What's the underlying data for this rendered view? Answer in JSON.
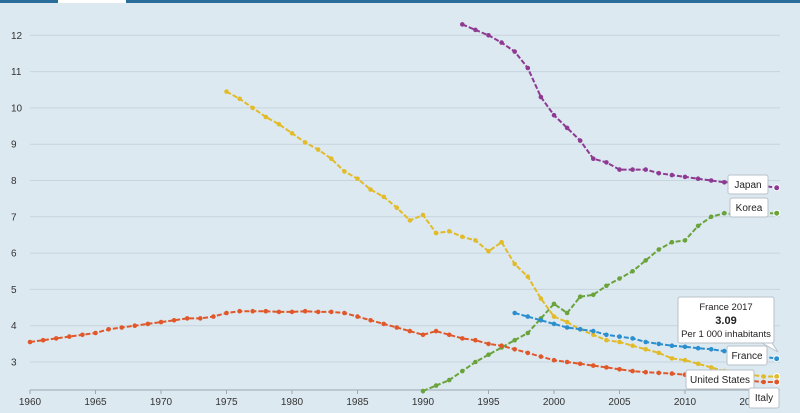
{
  "chart_data": {
    "type": "line",
    "x_ticks": [
      1960,
      1965,
      1970,
      1975,
      1980,
      1985,
      1990,
      1995,
      2000,
      2005,
      2010,
      2015
    ],
    "y_ticks": [
      3,
      4,
      5,
      6,
      7,
      8,
      9,
      10,
      11,
      12
    ],
    "xlim": [
      1960,
      2018
    ],
    "ylim": [
      2.2,
      12.7
    ],
    "grid": "horizontal",
    "series": [
      {
        "name": "Japan",
        "color": "#8e3a93",
        "x": [
          1993,
          1994,
          1995,
          1996,
          1997,
          1998,
          1999,
          2000,
          2001,
          2002,
          2003,
          2004,
          2005,
          2006,
          2007,
          2008,
          2009,
          2010,
          2011,
          2012,
          2013,
          2014,
          2015,
          2016,
          2017
        ],
        "values": [
          12.3,
          12.15,
          12.0,
          11.8,
          11.55,
          11.1,
          10.3,
          9.8,
          9.45,
          9.1,
          8.6,
          8.5,
          8.3,
          8.3,
          8.3,
          8.2,
          8.15,
          8.1,
          8.05,
          8.0,
          7.95,
          7.95,
          7.9,
          7.85,
          7.8
        ]
      },
      {
        "name": "Korea",
        "color": "#6aa33b",
        "x": [
          1990,
          1991,
          1992,
          1993,
          1994,
          1995,
          1996,
          1997,
          1998,
          1999,
          2000,
          2001,
          2002,
          2003,
          2004,
          2005,
          2006,
          2007,
          2008,
          2009,
          2010,
          2011,
          2012,
          2013,
          2014,
          2015,
          2016,
          2017
        ],
        "values": [
          2.2,
          2.35,
          2.5,
          2.75,
          3.0,
          3.2,
          3.4,
          3.6,
          3.8,
          4.2,
          4.6,
          4.35,
          4.8,
          4.85,
          5.1,
          5.3,
          5.5,
          5.8,
          6.1,
          6.3,
          6.35,
          6.75,
          7.0,
          7.1,
          7.05,
          7.15,
          7.1,
          7.1
        ]
      },
      {
        "name": "Italy",
        "color": "#e2bb2a",
        "x": [
          1975,
          1976,
          1977,
          1978,
          1979,
          1980,
          1981,
          1982,
          1983,
          1984,
          1985,
          1986,
          1987,
          1988,
          1989,
          1990,
          1991,
          1992,
          1993,
          1994,
          1995,
          1996,
          1997,
          1998,
          1999,
          2000,
          2001,
          2002,
          2003,
          2004,
          2005,
          2006,
          2007,
          2008,
          2009,
          2010,
          2011,
          2012,
          2013,
          2014,
          2015,
          2016,
          2017
        ],
        "values": [
          10.45,
          10.25,
          10.0,
          9.75,
          9.55,
          9.3,
          9.05,
          8.85,
          8.6,
          8.25,
          8.05,
          7.75,
          7.55,
          7.25,
          6.9,
          7.05,
          6.55,
          6.6,
          6.45,
          6.35,
          6.05,
          6.3,
          5.7,
          5.35,
          4.75,
          4.25,
          4.1,
          3.9,
          3.75,
          3.6,
          3.55,
          3.45,
          3.35,
          3.25,
          3.1,
          3.05,
          2.95,
          2.85,
          2.75,
          2.7,
          2.65,
          2.6,
          2.6
        ]
      },
      {
        "name": "France",
        "color": "#2b8fcf",
        "x": [
          1997,
          1998,
          1999,
          2000,
          2001,
          2002,
          2003,
          2004,
          2005,
          2006,
          2007,
          2008,
          2009,
          2010,
          2011,
          2012,
          2013,
          2014,
          2015,
          2016,
          2017
        ],
        "values": [
          4.35,
          4.25,
          4.15,
          4.05,
          3.95,
          3.9,
          3.85,
          3.75,
          3.7,
          3.65,
          3.55,
          3.5,
          3.45,
          3.42,
          3.38,
          3.35,
          3.3,
          3.25,
          3.2,
          3.15,
          3.09
        ]
      },
      {
        "name": "United States",
        "color": "#e0582a",
        "x": [
          1960,
          1961,
          1962,
          1963,
          1964,
          1965,
          1966,
          1967,
          1968,
          1969,
          1970,
          1971,
          1972,
          1973,
          1974,
          1975,
          1976,
          1977,
          1978,
          1979,
          1980,
          1981,
          1982,
          1983,
          1984,
          1985,
          1986,
          1987,
          1988,
          1989,
          1990,
          1991,
          1992,
          1993,
          1994,
          1995,
          1996,
          1997,
          1998,
          1999,
          2000,
          2001,
          2002,
          2003,
          2004,
          2005,
          2006,
          2007,
          2008,
          2009,
          2010,
          2011,
          2012,
          2013,
          2014,
          2015,
          2016,
          2017
        ],
        "values": [
          3.55,
          3.6,
          3.65,
          3.7,
          3.75,
          3.8,
          3.9,
          3.95,
          4.0,
          4.05,
          4.1,
          4.15,
          4.2,
          4.2,
          4.25,
          4.35,
          4.4,
          4.4,
          4.4,
          4.38,
          4.38,
          4.4,
          4.38,
          4.38,
          4.35,
          4.25,
          4.15,
          4.05,
          3.95,
          3.85,
          3.75,
          3.85,
          3.75,
          3.65,
          3.6,
          3.5,
          3.45,
          3.35,
          3.25,
          3.15,
          3.05,
          3.0,
          2.95,
          2.9,
          2.85,
          2.8,
          2.75,
          2.72,
          2.7,
          2.68,
          2.65,
          2.6,
          2.58,
          2.55,
          2.5,
          2.48,
          2.45,
          2.45
        ]
      }
    ],
    "series_labels": [
      "Japan",
      "Korea",
      "France",
      "United States",
      "Italy"
    ],
    "tooltip": {
      "title": "France 2017",
      "value": "3.09",
      "unit": "Per 1 000 inhabitants"
    }
  }
}
